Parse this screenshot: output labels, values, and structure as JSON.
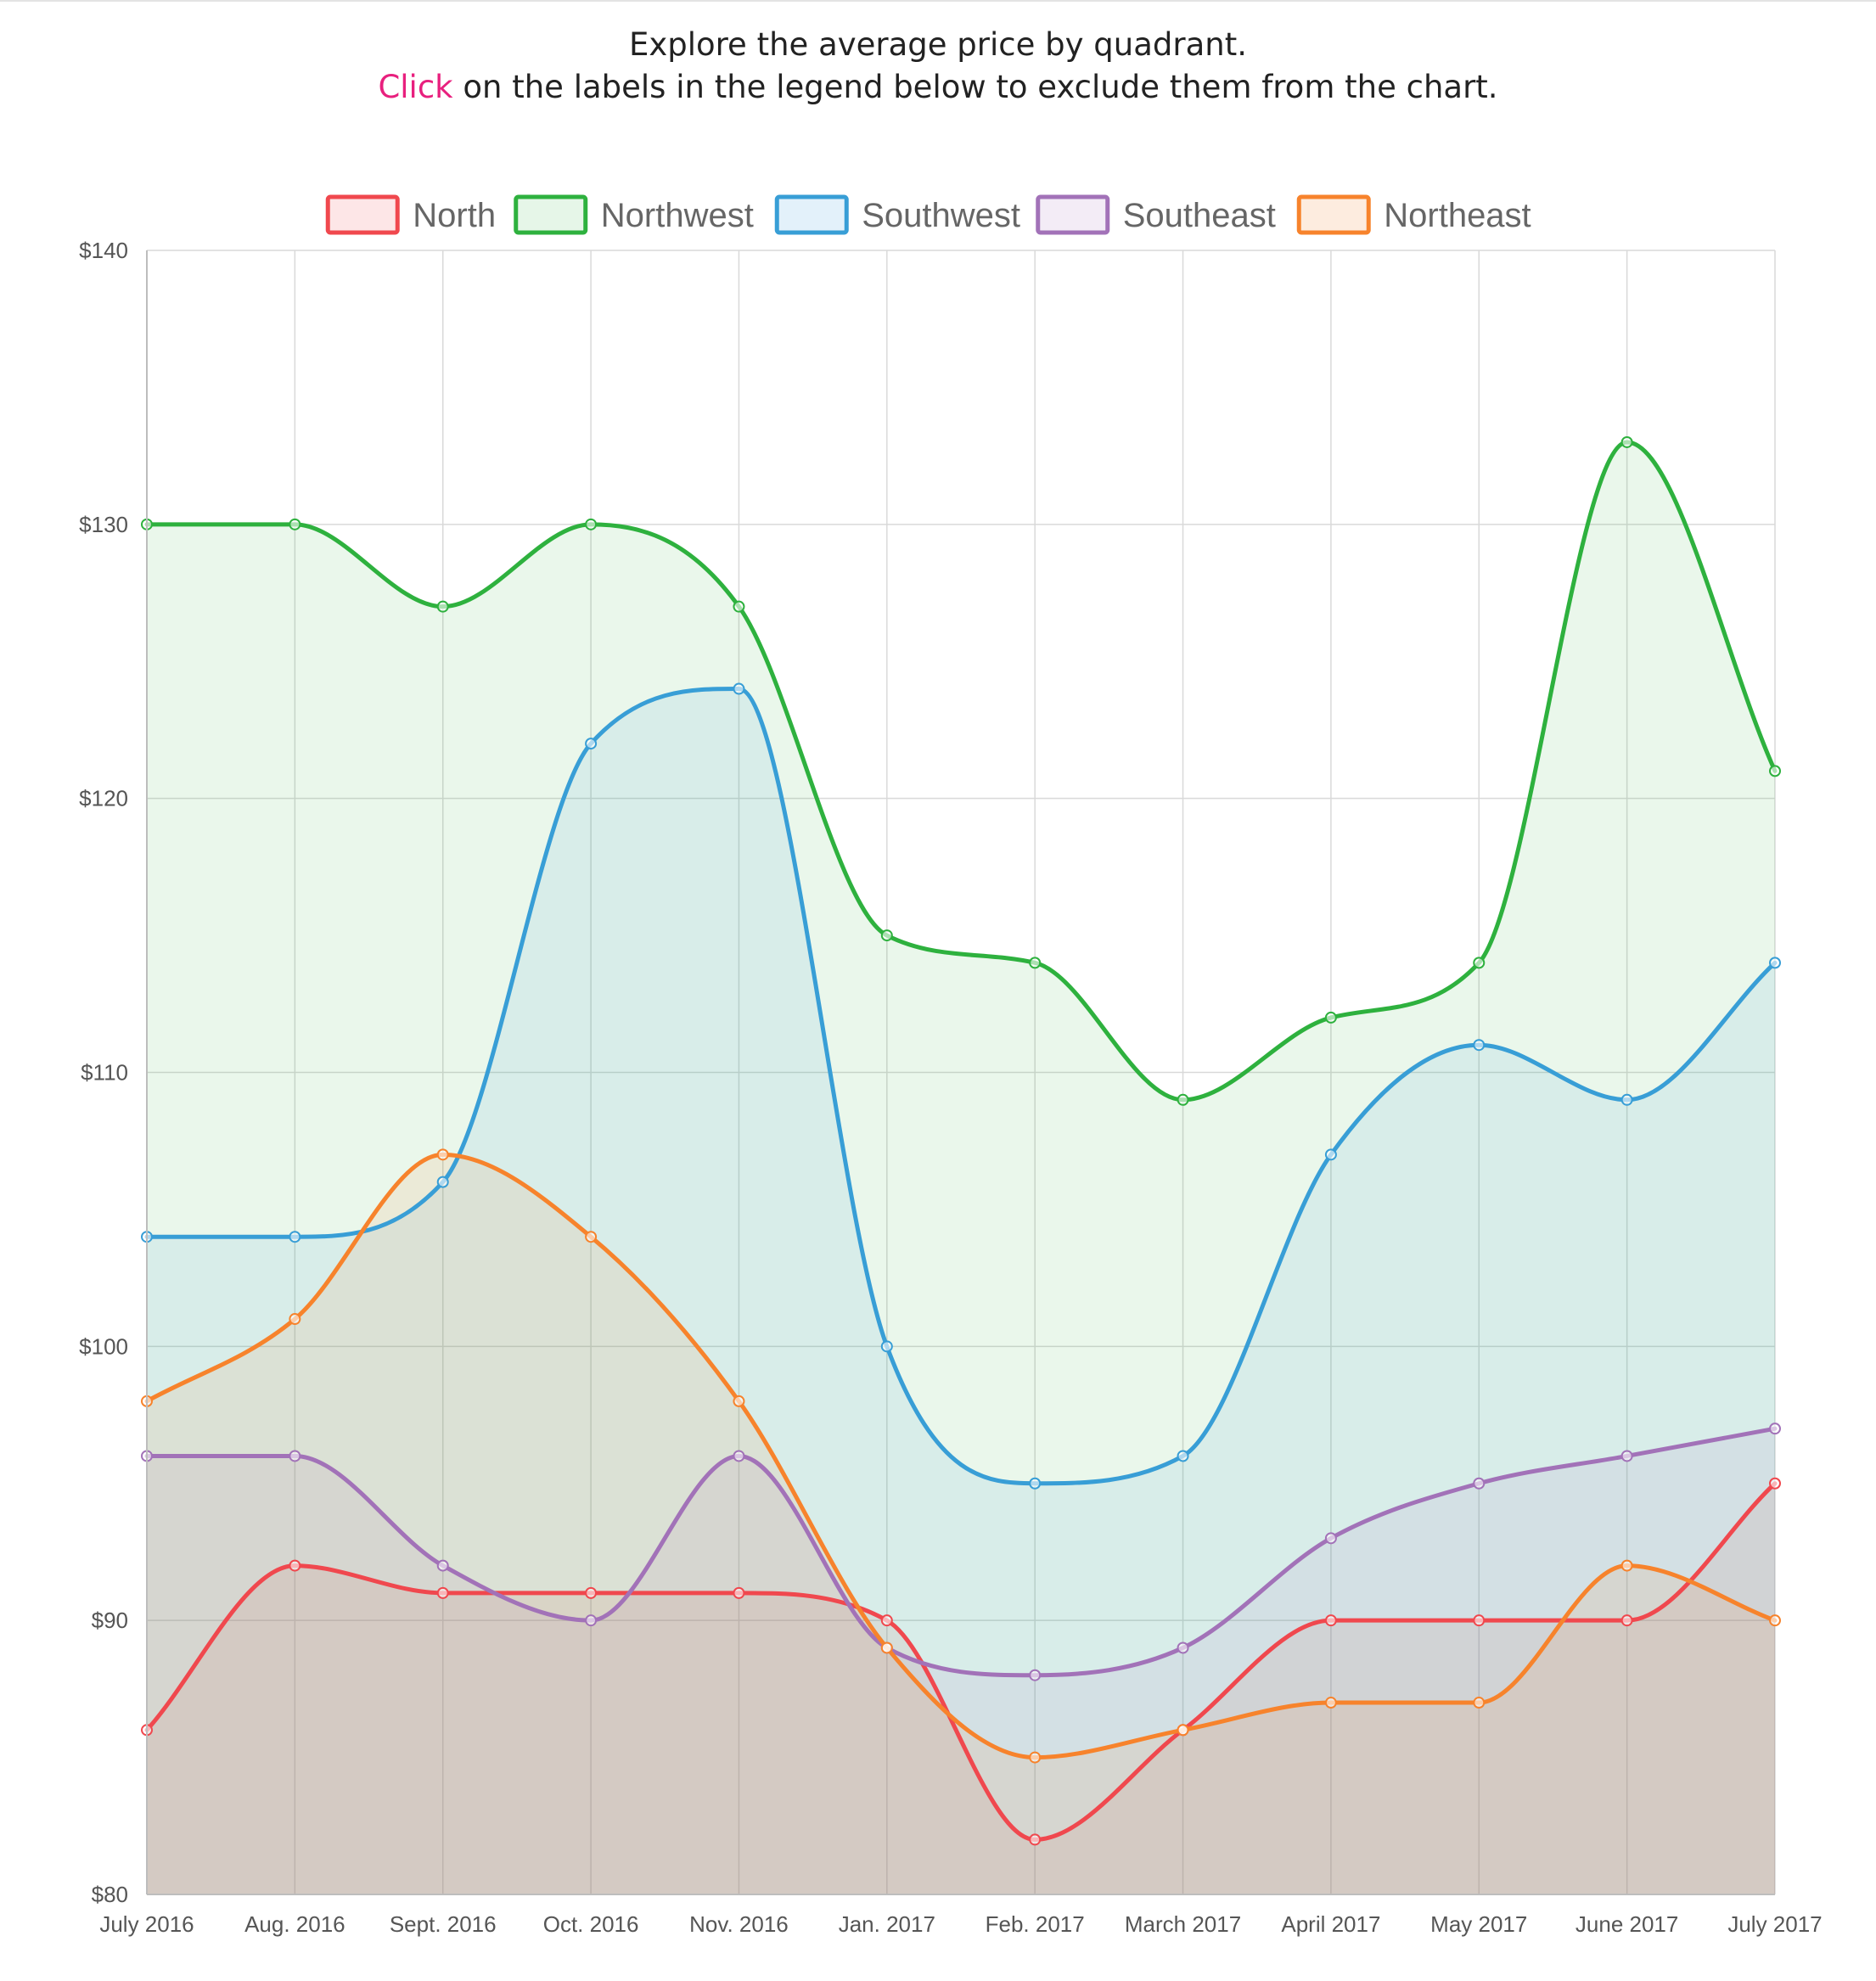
{
  "header": {
    "line1": "Explore the average price by quadrant.",
    "line2_highlight": "Click",
    "line2_rest": " on the labels in the legend below to exclude them from the chart."
  },
  "chart_data": {
    "type": "area",
    "title": "",
    "xlabel": "",
    "ylabel": "",
    "categories": [
      "July 2016",
      "Aug. 2016",
      "Sept. 2016",
      "Oct. 2016",
      "Nov. 2016",
      "Jan. 2017",
      "Feb. 2017",
      "March 2017",
      "April 2017",
      "May 2017",
      "June 2017",
      "July 2017"
    ],
    "ylim": [
      80,
      140
    ],
    "yticks": [
      80,
      90,
      100,
      110,
      120,
      130,
      140
    ],
    "ytick_labels": [
      "$80",
      "$90",
      "$100",
      "$110",
      "$120",
      "$130",
      "$140"
    ],
    "grid": true,
    "legend_position": "top-center",
    "series": [
      {
        "name": "North",
        "color": "#f0484e",
        "fill": "#fde6e7",
        "values": [
          86,
          92,
          91,
          91,
          91,
          90,
          82,
          86,
          90,
          90,
          90,
          95
        ]
      },
      {
        "name": "Northwest",
        "color": "#2eb13e",
        "fill": "#e6f6e8",
        "values": [
          130,
          130,
          127,
          130,
          127,
          115,
          114,
          109,
          112,
          114,
          133,
          121
        ]
      },
      {
        "name": "Southwest",
        "color": "#389ed6",
        "fill": "#e3f1fa",
        "values": [
          104,
          104,
          106,
          122,
          124,
          100,
          95,
          96,
          107,
          111,
          109,
          114
        ]
      },
      {
        "name": "Southeast",
        "color": "#a272b8",
        "fill": "#f3ecf6",
        "values": [
          96,
          96,
          92,
          90,
          96,
          89,
          88,
          89,
          93,
          95,
          96,
          97
        ]
      },
      {
        "name": "Northeast",
        "color": "#f7832c",
        "fill": "#fdecdf",
        "values": [
          98,
          101,
          107,
          104,
          98,
          89,
          85,
          86,
          87,
          87,
          92,
          90
        ]
      }
    ]
  }
}
